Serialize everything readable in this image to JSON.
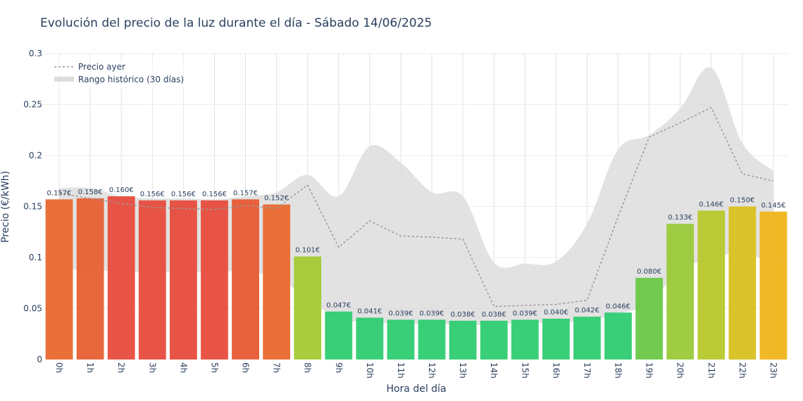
{
  "chart_data": {
    "type": "bar",
    "title": "Evolución del precio de la luz durante el día - Sábado 14/06/2025",
    "xlabel": "Hora del día",
    "ylabel": "Precio (€/kWh)",
    "ylim": [
      0,
      0.3
    ],
    "yticks": [
      0,
      0.05,
      0.1,
      0.15,
      0.2,
      0.25,
      0.3
    ],
    "ytick_labels": [
      "0",
      "0.05",
      "0.1",
      "0.15",
      "0.2",
      "0.25",
      "0.3"
    ],
    "grid": true,
    "legend_position": "top-left",
    "categories": [
      "0h",
      "1h",
      "2h",
      "3h",
      "4h",
      "5h",
      "6h",
      "7h",
      "8h",
      "9h",
      "10h",
      "11h",
      "12h",
      "13h",
      "14h",
      "15h",
      "16h",
      "17h",
      "18h",
      "19h",
      "20h",
      "21h",
      "22h",
      "23h"
    ],
    "series": [
      {
        "kind": "bar",
        "values": [
          0.157,
          0.158,
          0.16,
          0.156,
          0.156,
          0.156,
          0.157,
          0.152,
          0.101,
          0.047,
          0.041,
          0.039,
          0.039,
          0.038,
          0.038,
          0.039,
          0.04,
          0.042,
          0.046,
          0.08,
          0.133,
          0.146,
          0.15,
          0.145
        ],
        "labels": [
          "0.157€",
          "0.158€",
          "0.160€",
          "0.156€",
          "0.156€",
          "0.156€",
          "0.157€",
          "0.152€",
          "0.101€",
          "0.047€",
          "0.041€",
          "0.039€",
          "0.039€",
          "0.038€",
          "0.038€",
          "0.039€",
          "0.040€",
          "0.042€",
          "0.046€",
          "0.080€",
          "0.133€",
          "0.146€",
          "0.150€",
          "0.145€"
        ],
        "colors": [
          "#e8682e",
          "#e85f33",
          "#e74c3c",
          "#e74c3c",
          "#e74c3c",
          "#e74c3c",
          "#e75a34",
          "#e8682e",
          "#a3c934",
          "#2ecc71",
          "#2ecc71",
          "#2ecc71",
          "#2ecc71",
          "#2ecc71",
          "#2ecc71",
          "#2ecc71",
          "#2ecc71",
          "#2ecc71",
          "#2ecc71",
          "#6cc748",
          "#9bc93a",
          "#b7c82c",
          "#d8c020",
          "#f0b51a"
        ]
      },
      {
        "kind": "line",
        "name": "Precio ayer",
        "color": "#999999",
        "values": [
          0.163,
          0.158,
          0.153,
          0.149,
          0.148,
          0.147,
          0.151,
          0.148,
          0.171,
          0.11,
          0.136,
          0.121,
          0.12,
          0.118,
          0.052,
          0.053,
          0.054,
          0.058,
          0.14,
          0.218,
          0.232,
          0.247,
          0.182,
          0.175
        ]
      },
      {
        "kind": "band",
        "name": "Rango histórico (30 días)",
        "color": "#dddddd",
        "upper": [
          0.168,
          0.168,
          0.16,
          0.158,
          0.158,
          0.157,
          0.16,
          0.164,
          0.181,
          0.16,
          0.209,
          0.193,
          0.164,
          0.16,
          0.095,
          0.094,
          0.096,
          0.133,
          0.206,
          0.22,
          0.246,
          0.286,
          0.212,
          0.185
        ],
        "lower": [
          0.088,
          0.088,
          0.086,
          0.086,
          0.086,
          0.086,
          0.086,
          0.08,
          0.06,
          0.04,
          0.037,
          0.035,
          0.035,
          0.034,
          0.034,
          0.036,
          0.036,
          0.038,
          0.045,
          0.055,
          0.088,
          0.098,
          0.105,
          0.093
        ]
      }
    ]
  }
}
